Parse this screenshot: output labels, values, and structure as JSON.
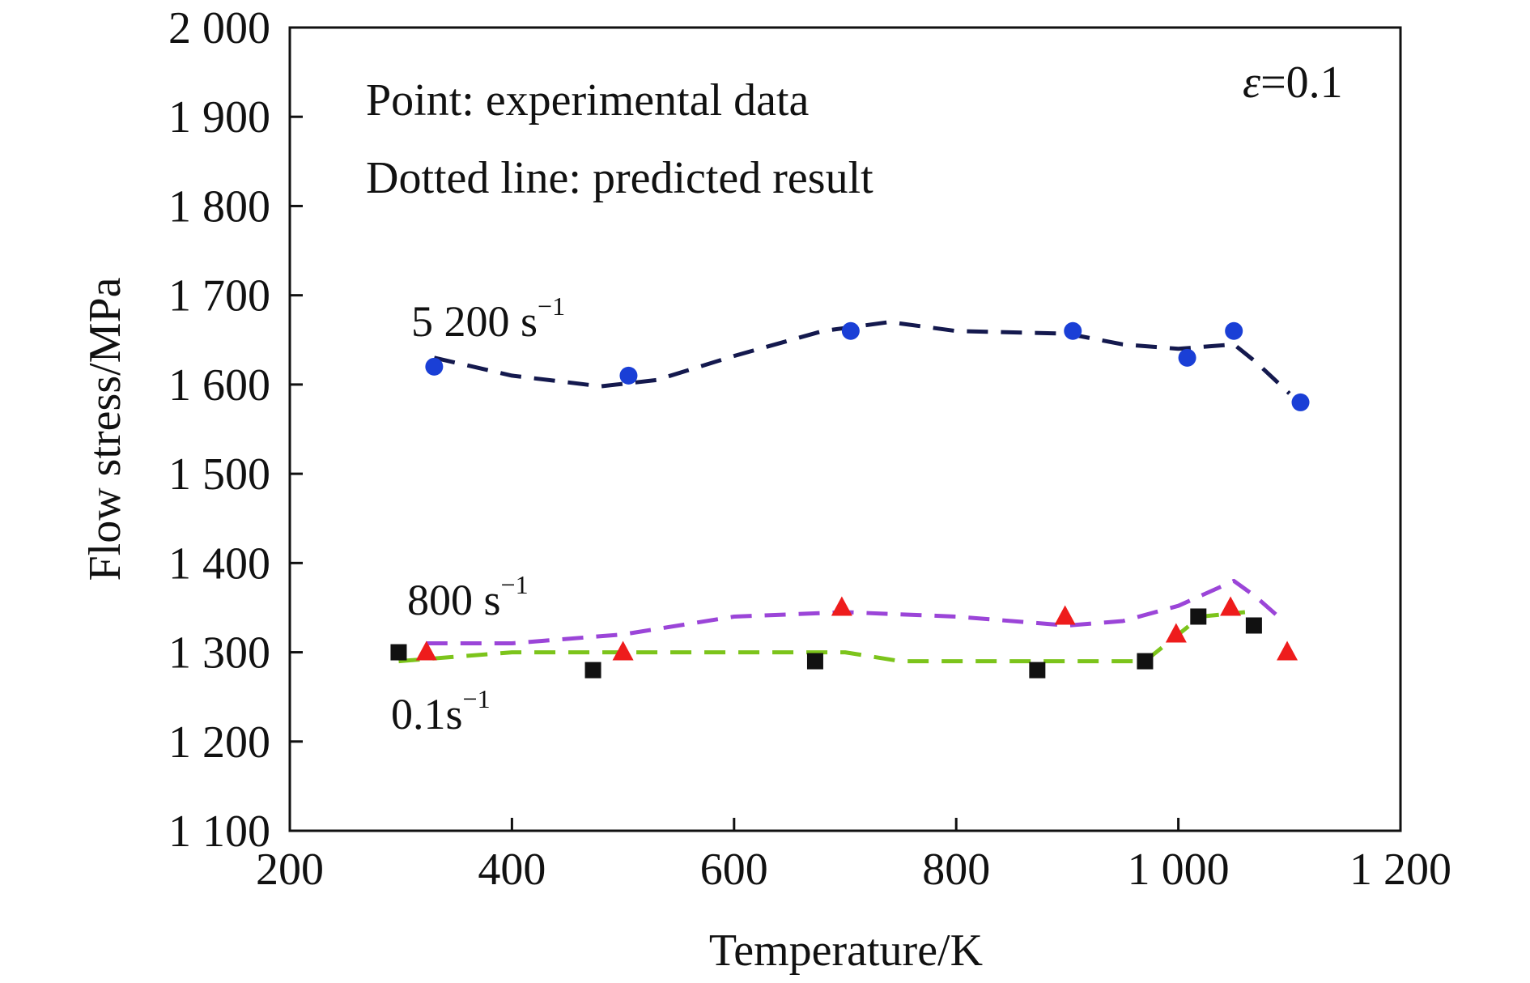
{
  "chart_data": {
    "type": "scatter",
    "xlabel": "Temperature/K",
    "ylabel": "Flow stress/MPa",
    "xlim": [
      200,
      1200
    ],
    "ylim": [
      1100,
      2000
    ],
    "xticks": [
      200,
      400,
      600,
      800,
      1000,
      1200
    ],
    "xtick_labels": [
      "200",
      "400",
      "600",
      "800",
      "1 000",
      "1 200"
    ],
    "yticks": [
      1100,
      1200,
      1300,
      1400,
      1500,
      1600,
      1700,
      1800,
      1900,
      2000
    ],
    "ytick_labels": [
      "1 100",
      "1 200",
      "1 300",
      "1 400",
      "1 500",
      "1 600",
      "1 700",
      "1 800",
      "1 900",
      "2 000"
    ],
    "grid": false,
    "annotations": {
      "point_note": "Point: experimental data",
      "line_note": "Dotted line: predicted result",
      "strain_symbol": "ε",
      "strain_value": "=0.1"
    },
    "series": [
      {
        "rate_base": "5 200 s",
        "rate_exp": "−1",
        "marker": "circle",
        "color": "#1a3fd6",
        "line_color": "#14194e",
        "experimental": {
          "x": [
            330,
            505,
            705,
            905,
            1008,
            1050,
            1110
          ],
          "y": [
            1620,
            1610,
            1660,
            1660,
            1630,
            1660,
            1580
          ]
        },
        "predicted": {
          "x": [
            330,
            400,
            480,
            530,
            600,
            680,
            740,
            800,
            900,
            950,
            1000,
            1050,
            1070,
            1100
          ],
          "y": [
            1630,
            1610,
            1598,
            1605,
            1632,
            1660,
            1670,
            1660,
            1657,
            1645,
            1640,
            1645,
            1625,
            1590
          ]
        }
      },
      {
        "rate_base": "800 s",
        "rate_exp": "−1",
        "marker": "triangle",
        "color": "#ee1c1c",
        "line_color": "#9b45d8",
        "experimental": {
          "x": [
            323,
            500,
            697,
            898,
            998,
            1047,
            1098
          ],
          "y": [
            1300,
            1300,
            1350,
            1340,
            1320,
            1350,
            1300
          ]
        },
        "predicted": {
          "x": [
            323,
            400,
            500,
            600,
            700,
            800,
            900,
            950,
            1000,
            1050,
            1070,
            1090
          ],
          "y": [
            1310,
            1310,
            1320,
            1340,
            1345,
            1340,
            1330,
            1335,
            1352,
            1380,
            1362,
            1340
          ]
        }
      },
      {
        "rate_base": "0.1s",
        "rate_exp": "−1",
        "marker": "square",
        "color": "#111111",
        "line_color": "#7cc41b",
        "experimental": {
          "x": [
            298,
            473,
            673,
            873,
            970,
            1018,
            1068
          ],
          "y": [
            1300,
            1280,
            1290,
            1280,
            1290,
            1340,
            1330
          ]
        },
        "predicted": {
          "x": [
            298,
            400,
            500,
            600,
            700,
            750,
            800,
            873,
            970,
            1020,
            1060
          ],
          "y": [
            1290,
            1300,
            1300,
            1300,
            1300,
            1290,
            1290,
            1290,
            1290,
            1340,
            1345
          ]
        }
      }
    ]
  }
}
